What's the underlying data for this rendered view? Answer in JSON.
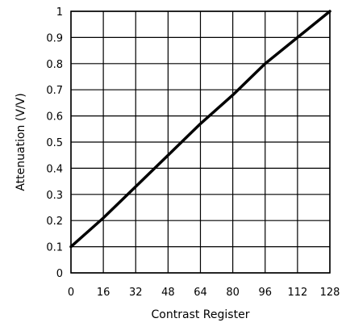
{
  "chart_data": {
    "type": "line",
    "xlabel": "Contrast Register",
    "ylabel": "Attenuation (V/V)",
    "xlim": [
      0,
      128
    ],
    "ylim": [
      0,
      1
    ],
    "x_ticks": [
      "0",
      "16",
      "32",
      "48",
      "64",
      "80",
      "96",
      "112",
      "128"
    ],
    "y_ticks": [
      "0",
      "0.1",
      "0.2",
      "0.3",
      "0.4",
      "0.5",
      "0.6",
      "0.7",
      "0.8",
      "0.9",
      "1"
    ],
    "grid": true,
    "line_color": "#000000",
    "series": [
      {
        "x": [
          0,
          16,
          32,
          48,
          64,
          80,
          96,
          112,
          128
        ],
        "values": [
          0.1,
          0.21,
          0.33,
          0.45,
          0.57,
          0.68,
          0.8,
          0.9,
          1.0
        ]
      }
    ]
  }
}
